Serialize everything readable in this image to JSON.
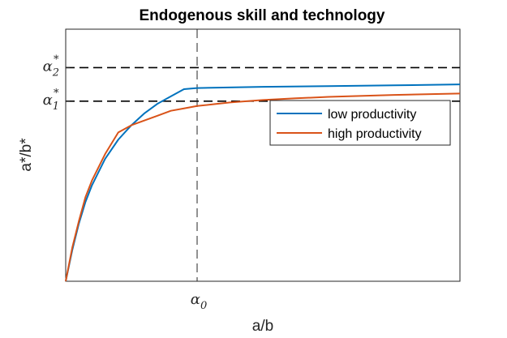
{
  "chart_data": {
    "type": "line",
    "title": "Endogenous skill and technology",
    "xlabel": "a/b",
    "ylabel": "a*/b*",
    "xlim": [
      0,
      3
    ],
    "ylim": [
      0,
      1.05
    ],
    "x_ticks": [
      {
        "value": 1,
        "symbol": "α",
        "sub": "0",
        "sup": ""
      }
    ],
    "y_ticks": [
      {
        "value": 0.75,
        "symbol": "α",
        "sub": "1",
        "sup": "*"
      },
      {
        "value": 0.89,
        "symbol": "α",
        "sub": "2",
        "sup": "*"
      }
    ],
    "reference_lines": [
      {
        "axis": "y",
        "value": 0.89,
        "style": "dashed"
      },
      {
        "axis": "y",
        "value": 0.75,
        "style": "dashed"
      },
      {
        "axis": "x",
        "value": 1,
        "style": "dashed"
      }
    ],
    "legend_position": "right",
    "grid": false,
    "series": [
      {
        "name": "low productivity",
        "color": "#0072BD",
        "x": [
          0,
          0.05,
          0.1,
          0.15,
          0.2,
          0.3,
          0.4,
          0.5,
          0.6,
          0.7,
          0.8,
          0.9,
          1.0,
          1.5,
          2.0,
          2.5,
          3.0
        ],
        "y": [
          0,
          0.13,
          0.24,
          0.33,
          0.4,
          0.51,
          0.59,
          0.65,
          0.7,
          0.74,
          0.77,
          0.8,
          0.805,
          0.81,
          0.813,
          0.816,
          0.82
        ]
      },
      {
        "name": "high productivity",
        "color": "#D95319",
        "x": [
          0,
          0.05,
          0.1,
          0.15,
          0.2,
          0.3,
          0.4,
          0.5,
          0.6,
          0.7,
          0.8,
          0.9,
          1.0,
          1.25,
          1.5,
          1.75,
          2.0,
          2.5,
          3.0
        ],
        "y": [
          0,
          0.14,
          0.25,
          0.35,
          0.42,
          0.53,
          0.62,
          0.65,
          0.67,
          0.69,
          0.71,
          0.72,
          0.73,
          0.745,
          0.755,
          0.762,
          0.768,
          0.776,
          0.782
        ]
      }
    ]
  }
}
